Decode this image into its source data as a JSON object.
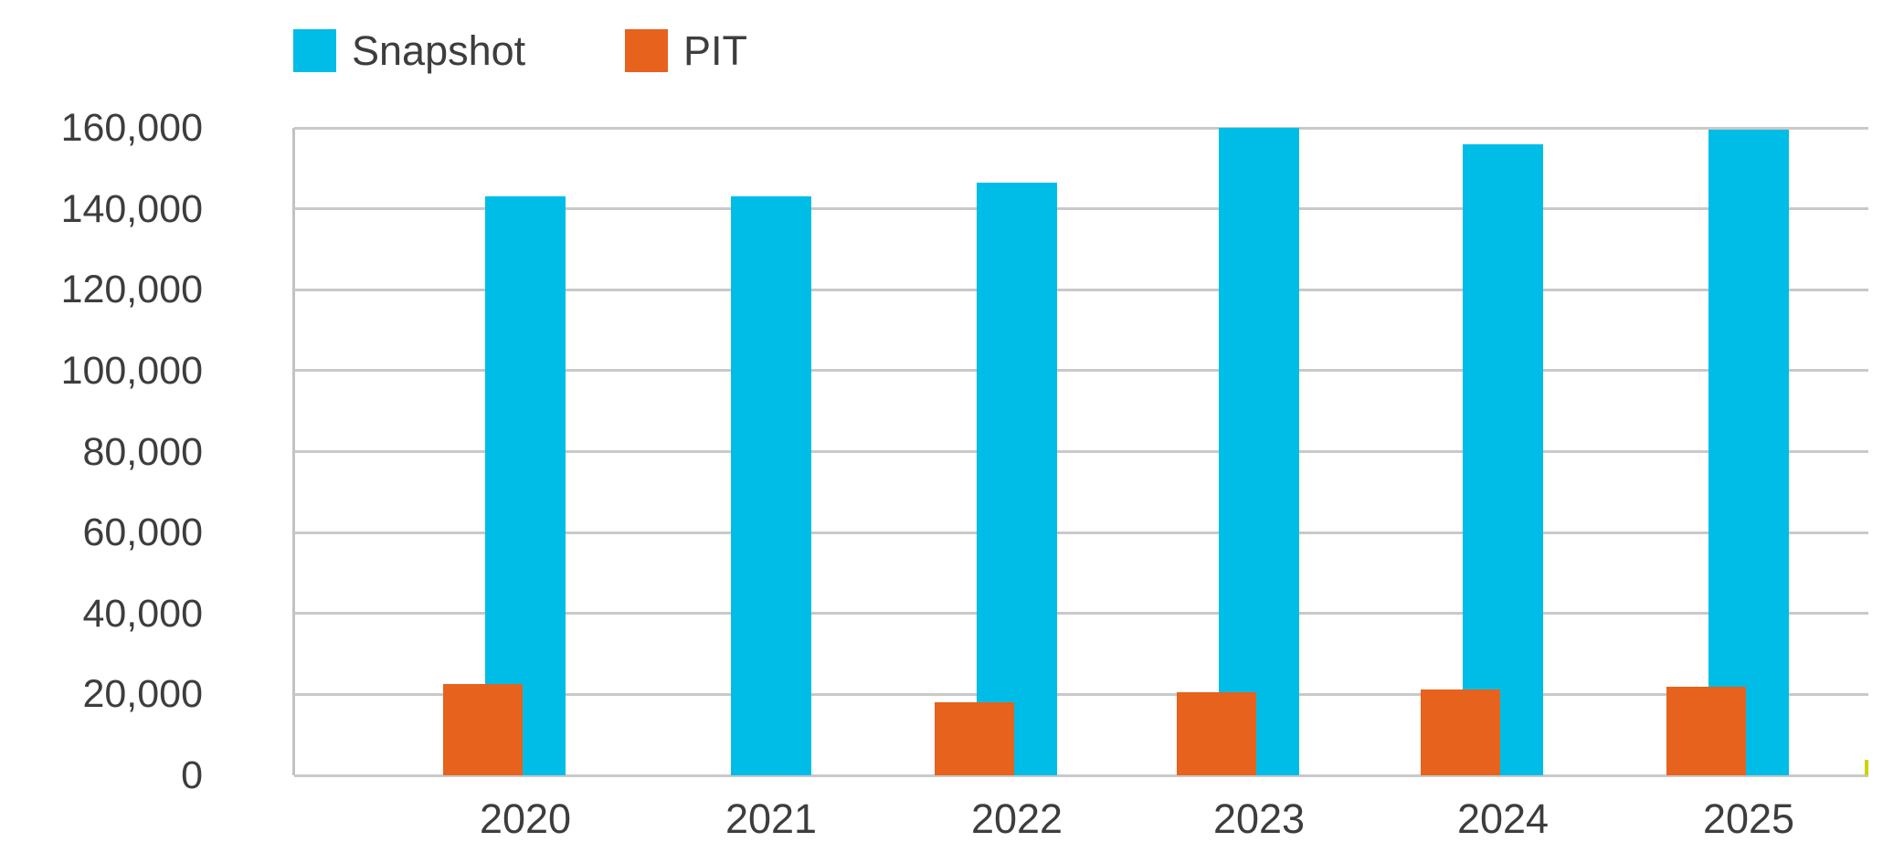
{
  "chart_data": {
    "type": "bar",
    "title": "",
    "categories": [
      "2020",
      "2021",
      "2022",
      "2023",
      "2024",
      "2025"
    ],
    "series": [
      {
        "name": "Snapshot",
        "color": "#00bde7",
        "values": [
          143000,
          143000,
          146500,
          160000,
          156000,
          159500
        ]
      },
      {
        "name": "PIT",
        "color": "#e6621d",
        "values": [
          22500,
          0,
          18000,
          20500,
          21200,
          22000
        ]
      }
    ],
    "xlabel": "",
    "ylabel": "",
    "ylim": [
      0,
      160000
    ],
    "ytick_interval": 20000,
    "ytick_labels": [
      "0",
      "20,000",
      "40,000",
      "60,000",
      "80,000",
      "100,000",
      "120,000",
      "140,000",
      "160,000"
    ],
    "grid": "horizontal",
    "legend_position": "top-left",
    "bar_style": "overlapping-pairs (PIT bar drawn in front, offset left of Snapshot bar)"
  },
  "legend": [
    {
      "label": "Snapshot",
      "color": "#00bde7"
    },
    {
      "label": "PIT",
      "color": "#e6621d"
    }
  ],
  "colors": {
    "gridline": "#c9c9c9",
    "axis_line": "#c2c2c2",
    "text": "#3d3d3d",
    "background": "#ffffff",
    "edge_artifact": "#c9d400"
  },
  "edge_artifact": {
    "description": "thin yellow-green sliver at right edge of plot baseline",
    "approx_value": 3800
  }
}
